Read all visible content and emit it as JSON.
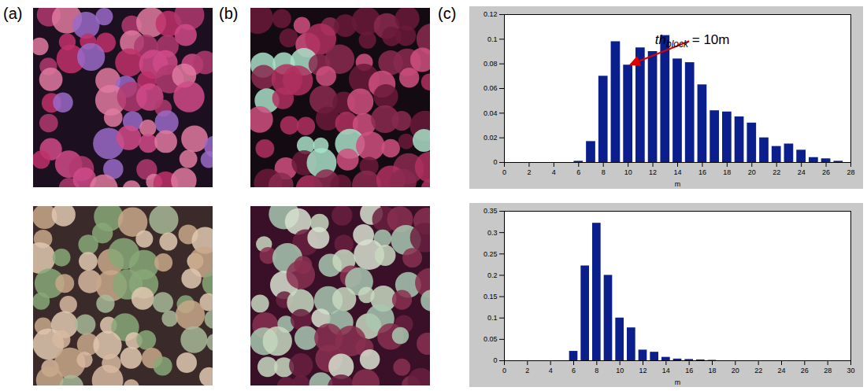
{
  "panel_labels": [
    "(a)",
    "(b)",
    "(c)"
  ],
  "chart_data": [
    {
      "type": "histogram",
      "bins": [
        5.5,
        6.5,
        7.5,
        8.5,
        9.5,
        10.5,
        11.5,
        12.5,
        13.5,
        14.5,
        15.5,
        16.5,
        17.5,
        18.5,
        19.5,
        20.5,
        21.5,
        22.5,
        23.5,
        24.5,
        25.5,
        26.5,
        27.5
      ],
      "values": [
        0.001,
        0.017,
        0.07,
        0.098,
        0.079,
        0.093,
        0.09,
        0.103,
        0.084,
        0.081,
        0.063,
        0.042,
        0.041,
        0.037,
        0.032,
        0.02,
        0.013,
        0.015,
        0.01,
        0.004,
        0.003,
        0.001
      ],
      "color": "#0a1e8c",
      "xlabel": "m",
      "xlim": [
        0,
        28
      ],
      "xticks": [
        0,
        2,
        4,
        6,
        8,
        10,
        12,
        14,
        16,
        18,
        20,
        22,
        24,
        26,
        28
      ],
      "ylim": [
        0,
        0.12
      ],
      "yticks": [
        0,
        0.02,
        0.04,
        0.06,
        0.08,
        0.1,
        0.12
      ],
      "annotations": [
        {
          "parts": [
            {
              "text": "th",
              "style": "italic"
            },
            {
              "text": "block",
              "style": "italic-subscript"
            },
            {
              "text": " = 10m",
              "style": "normal"
            }
          ],
          "x": 10,
          "y": 0.079,
          "color": "#e00000"
        }
      ]
    },
    {
      "type": "histogram",
      "bins": [
        5.5,
        6.5,
        7.5,
        8.5,
        9.5,
        10.5,
        11.5,
        12.5,
        13.5,
        14.5,
        15.5,
        16.5,
        17.5,
        18.5
      ],
      "values": [
        0.022,
        0.222,
        0.322,
        0.2,
        0.1,
        0.077,
        0.025,
        0.02,
        0.008,
        0.004,
        0.003,
        0.002,
        0.001
      ],
      "color": "#0a1e8c",
      "xlabel": "m",
      "xlim": [
        0,
        30
      ],
      "xticks": [
        0,
        2,
        4,
        6,
        8,
        10,
        12,
        14,
        16,
        18,
        20,
        22,
        24,
        26,
        28,
        30
      ],
      "ylim": [
        0,
        0.35
      ],
      "yticks": [
        0,
        0.05,
        0.1,
        0.15,
        0.2,
        0.25,
        0.3,
        0.35
      ]
    }
  ]
}
